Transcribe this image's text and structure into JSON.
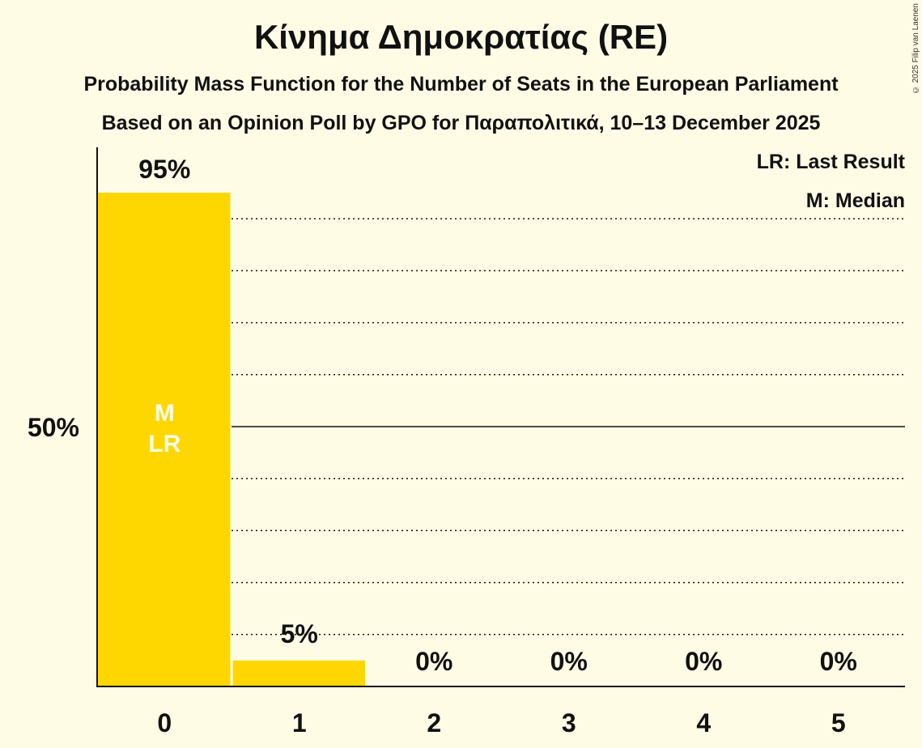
{
  "header": {
    "title": "Κίνημα Δημοκρατίας (RE)",
    "subtitle1": "Probability Mass Function for the Number of Seats in the European Parliament",
    "subtitle2": "Based on an Opinion Poll by GPO for Παραπολιτικά, 10–13 December 2025",
    "copyright": "© 2025 Filip van Laenen"
  },
  "legend": {
    "lr": "LR: Last Result",
    "m": "M: Median"
  },
  "axis": {
    "y_label_50": "50%"
  },
  "bar_markers": {
    "median": "M",
    "last_result": "LR"
  },
  "colors": {
    "background": "#FFFCE6",
    "bar": "#FFD700",
    "marker_text": "#FFFCE6"
  },
  "chart_data": {
    "type": "bar",
    "title": "Κίνημα Δημοκρατίας (RE)",
    "subtitle": "Probability Mass Function for the Number of Seats in the European Parliament",
    "xlabel": "",
    "ylabel": "",
    "categories": [
      "0",
      "1",
      "2",
      "3",
      "4",
      "5"
    ],
    "values": [
      95,
      5,
      0,
      0,
      0,
      0
    ],
    "value_labels": [
      "95%",
      "5%",
      "0%",
      "0%",
      "0%",
      "0%"
    ],
    "ylim": [
      0,
      100
    ],
    "yticks_labeled": [
      "50%"
    ],
    "grid": "dotted every 10%, solid at 50%",
    "median": 0,
    "last_result": 0,
    "legend": [
      "LR: Last Result",
      "M: Median"
    ],
    "legend_position": "top-right"
  }
}
